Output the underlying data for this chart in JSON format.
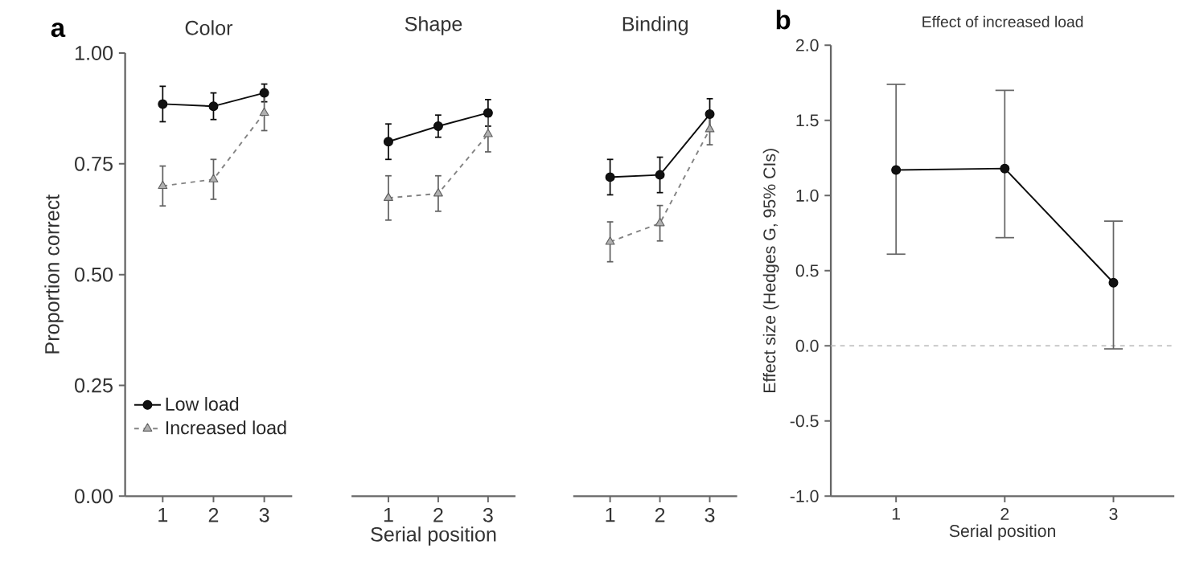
{
  "chart_data": [
    {
      "type": "line",
      "title": "Color",
      "ylabel": "Proportion correct",
      "annotations": [
        "a"
      ],
      "categories": [
        "1",
        "2",
        "3"
      ],
      "ylim": [
        0,
        1
      ],
      "yticks": [
        {
          "value": 0,
          "label": "0.00"
        },
        {
          "value": 0.25,
          "label": "0.25"
        },
        {
          "value": 0.5,
          "label": "0.50"
        },
        {
          "value": 0.75,
          "label": "0.75"
        },
        {
          "value": 1,
          "label": "1.00"
        }
      ],
      "legend": "bottom left",
      "series": [
        {
          "name": "Low load",
          "color": "#111111",
          "marker": "circle",
          "line_style": "solid",
          "values": [
            0.885,
            0.88,
            0.91
          ],
          "errors": [
            0.04,
            0.03,
            0.02
          ]
        },
        {
          "name": "Increased load",
          "color": "#b0b0b0",
          "marker": "triangle",
          "line_style": "dashed",
          "values": [
            0.7,
            0.715,
            0.865
          ],
          "errors": [
            0.045,
            0.045,
            0.04
          ]
        }
      ]
    },
    {
      "type": "line",
      "title": "Shape",
      "xlabel": "Serial position",
      "categories": [
        "1",
        "2",
        "3"
      ],
      "ylim": [
        0,
        1
      ],
      "tick_labels": "x",
      "series": [
        {
          "color": "#111111",
          "marker": "circle",
          "line_style": "solid",
          "values": [
            0.8,
            0.835,
            0.865
          ],
          "errors": [
            0.04,
            0.025,
            0.03
          ]
        },
        {
          "color": "#b0b0b0",
          "marker": "triangle",
          "line_style": "dashed",
          "values": [
            0.673,
            0.683,
            0.817
          ],
          "errors": [
            0.05,
            0.04,
            0.04
          ]
        }
      ]
    },
    {
      "type": "line",
      "title": "Binding",
      "categories": [
        "1",
        "2",
        "3"
      ],
      "ylim": [
        0,
        1
      ],
      "tick_labels": "x",
      "series": [
        {
          "color": "#111111",
          "marker": "circle",
          "line_style": "solid",
          "values": [
            0.72,
            0.725,
            0.862
          ],
          "errors": [
            0.04,
            0.04,
            0.035
          ]
        },
        {
          "color": "#b0b0b0",
          "marker": "triangle",
          "line_style": "dashed",
          "values": [
            0.574,
            0.616,
            0.828
          ],
          "errors": [
            0.045,
            0.04,
            0.035
          ]
        }
      ]
    },
    {
      "type": "line",
      "title": "Effect of increased load",
      "xlabel": "Serial position",
      "ylabel": "Effect size (Hedges G, 95% CIs)",
      "annotations": [
        "b"
      ],
      "categories": [
        "1",
        "2",
        "3"
      ],
      "ylim": [
        -1,
        2
      ],
      "yticks": [
        {
          "value": -1,
          "label": "-1.0"
        },
        {
          "value": -0.5,
          "label": "-0.5"
        },
        {
          "value": 0,
          "label": "0.0"
        },
        {
          "value": 0.5,
          "label": "0.5"
        },
        {
          "value": 1,
          "label": "1.0"
        },
        {
          "value": 1.5,
          "label": "1.5"
        },
        {
          "value": 2,
          "label": "2.0"
        }
      ],
      "ref_lines": [
        {
          "axis": "y",
          "value": 0,
          "color": "#b8b8b8",
          "line_style": "dashed"
        }
      ],
      "series": [
        {
          "color": "#111111",
          "marker": "circle",
          "line_style": "solid",
          "values": [
            1.17,
            1.18,
            0.42
          ],
          "errors": [
            [
              0.61,
              1.74
            ],
            [
              0.72,
              1.7
            ],
            [
              -0.02,
              0.83
            ]
          ]
        }
      ]
    }
  ]
}
